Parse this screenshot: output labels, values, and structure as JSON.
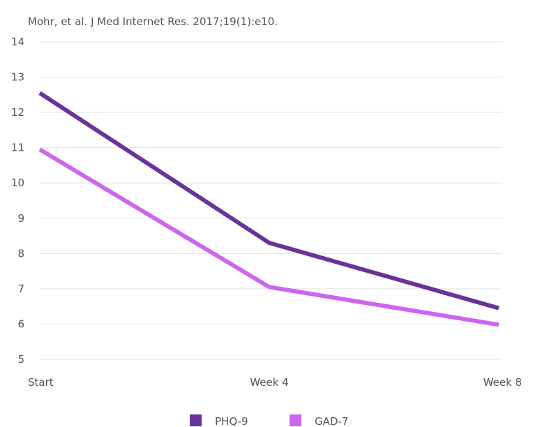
{
  "source_note": "Mohr, et al. J Med Internet Res. 2017;19(1):e10.",
  "chart_data": {
    "type": "line",
    "categories": [
      "Start",
      "Week 4",
      "Week 8"
    ],
    "ylim": [
      5,
      14
    ],
    "yticks": [
      "5",
      "6",
      "7",
      "8",
      "9",
      "10",
      "11",
      "12",
      "13",
      "14"
    ],
    "grid": true,
    "legend_position": "bottom",
    "series": [
      {
        "name": "PHQ-9",
        "values": [
          12.55,
          8.3,
          6.45
        ],
        "color": "#6a3399"
      },
      {
        "name": "GAD-7",
        "values": [
          10.95,
          7.05,
          5.98
        ],
        "color": "#cc66ee"
      }
    ]
  }
}
